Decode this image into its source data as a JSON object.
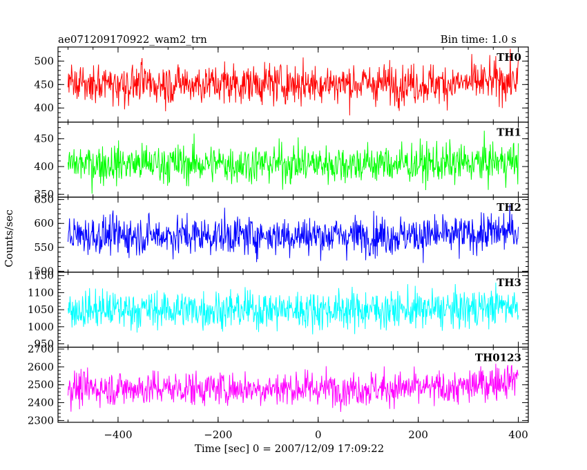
{
  "chart_data": {
    "type": "line",
    "title": "ae071209170922_wam2_trn",
    "bin_time_label": "Bin time: 1.0 s",
    "xlabel": "Time [sec] 0 = 2007/12/09 17:09:22",
    "ylabel": "Counts/sec",
    "xlim": [
      -520,
      420
    ],
    "x_range": [
      -500,
      400
    ],
    "x_ticks": [
      -400,
      -200,
      0,
      200,
      400
    ],
    "x_tick_labels": [
      "−400",
      "−200",
      "0",
      "200",
      "400"
    ],
    "panels": [
      {
        "name": "TH0",
        "color": "#ff0000",
        "ylim": [
          370,
          530
        ],
        "y_ticks": [
          400,
          450,
          500
        ],
        "y_tick_labels": [
          "400",
          "450",
          "500"
        ],
        "mean": 452,
        "amplitude": 42,
        "end_trend": 8
      },
      {
        "name": "TH1",
        "color": "#00ff00",
        "ylim": [
          345,
          480
        ],
        "y_ticks": [
          350,
          400,
          450
        ],
        "y_tick_labels": [
          "350",
          "400",
          "450"
        ],
        "mean": 405,
        "amplitude": 35,
        "end_trend": 5
      },
      {
        "name": "TH2",
        "color": "#0000ff",
        "ylim": [
          498,
          655
        ],
        "y_ticks": [
          500,
          550,
          600,
          650
        ],
        "y_tick_labels": [
          "500",
          "550",
          "600",
          "650"
        ],
        "mean": 575,
        "amplitude": 40,
        "end_trend": 10
      },
      {
        "name": "TH3",
        "color": "#00ffff",
        "ylim": [
          940,
          1160
        ],
        "y_ticks": [
          950,
          1000,
          1050,
          1100,
          1150
        ],
        "y_tick_labels": [
          "950",
          "1000",
          "1050",
          "1100",
          "1150"
        ],
        "mean": 1050,
        "amplitude": 55,
        "end_trend": 15
      },
      {
        "name": "TH0123",
        "color": "#ff00ff",
        "ylim": [
          2290,
          2710
        ],
        "y_ticks": [
          2300,
          2400,
          2500,
          2600,
          2700
        ],
        "y_tick_labels": [
          "2300",
          "2400",
          "2500",
          "2600",
          "2700"
        ],
        "mean": 2480,
        "amplitude": 95,
        "end_trend": 60
      }
    ]
  }
}
